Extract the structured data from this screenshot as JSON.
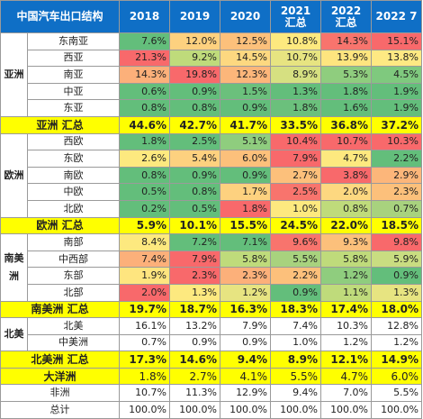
{
  "header": {
    "title": "中国汽车出口结构",
    "columns": [
      "2018",
      "2019",
      "2020",
      "2021 汇总",
      "2022 汇总",
      "2022 7"
    ]
  },
  "groups": {
    "asia": {
      "label": "亚洲",
      "rows": [
        {
          "region": "东南亚",
          "values": [
            "7.6%",
            "12.0%",
            "12.5%",
            "10.8%",
            "14.3%",
            "15.1%"
          ],
          "colors": [
            "#63be7b",
            "#fdd17f",
            "#fcc07b",
            "#fde97f",
            "#f8746d",
            "#f8696b"
          ]
        },
        {
          "region": "西亚",
          "values": [
            "21.3%",
            "9.2%",
            "14.5%",
            "10.7%",
            "13.9%",
            "13.8%"
          ],
          "colors": [
            "#f8696b",
            "#bfdb7b",
            "#fdd880",
            "#e7e481",
            "#fee57f",
            "#fee983"
          ]
        },
        {
          "region": "南亚",
          "values": [
            "14.3%",
            "19.8%",
            "12.3%",
            "8.9%",
            "5.3%",
            "4.5%"
          ],
          "colors": [
            "#fcb07a",
            "#f8696b",
            "#fcb67a",
            "#d6e081",
            "#8fcd7e",
            "#7fc97e"
          ]
        },
        {
          "region": "中亚",
          "values": [
            "0.6%",
            "0.9%",
            "1.5%",
            "1.3%",
            "1.8%",
            "1.9%"
          ],
          "colors": [
            "#63be7b",
            "#63be7b",
            "#6bc07c",
            "#63be7b",
            "#63be7b",
            "#63be7b"
          ]
        },
        {
          "region": "东亚",
          "values": [
            "0.8%",
            "0.8%",
            "0.9%",
            "1.8%",
            "1.6%",
            "1.9%"
          ],
          "colors": [
            "#63be7b",
            "#63be7b",
            "#63be7b",
            "#6bc07c",
            "#63be7b",
            "#63be7b"
          ]
        }
      ],
      "summary": {
        "label": "亚洲 汇总",
        "values": [
          "44.6%",
          "42.7%",
          "41.7%",
          "33.5%",
          "36.8%",
          "37.2%"
        ]
      }
    },
    "europe": {
      "label": "欧洲",
      "rows": [
        {
          "region": "西欧",
          "values": [
            "1.8%",
            "2.5%",
            "5.1%",
            "10.4%",
            "10.7%",
            "10.3%"
          ],
          "colors": [
            "#63be7b",
            "#63be7b",
            "#8fcd7e",
            "#f8696b",
            "#f8696b",
            "#f8696b"
          ]
        },
        {
          "region": "东欧",
          "values": [
            "2.6%",
            "5.4%",
            "6.0%",
            "7.9%",
            "4.7%",
            "2.2%"
          ],
          "colors": [
            "#fde97f",
            "#fdd17f",
            "#fcc07b",
            "#f8696b",
            "#fde97f",
            "#63be7b"
          ]
        },
        {
          "region": "南欧",
          "values": [
            "0.8%",
            "0.9%",
            "0.9%",
            "2.7%",
            "3.8%",
            "2.9%"
          ],
          "colors": [
            "#63be7b",
            "#63be7b",
            "#63be7b",
            "#fcc07b",
            "#f8696b",
            "#fcb67a"
          ]
        },
        {
          "region": "中欧",
          "values": [
            "0.5%",
            "0.8%",
            "1.7%",
            "2.5%",
            "2.0%",
            "2.3%"
          ],
          "colors": [
            "#63be7b",
            "#63be7b",
            "#fdd17f",
            "#f8746d",
            "#fdd880",
            "#fcc07b"
          ]
        },
        {
          "region": "北欧",
          "values": [
            "0.2%",
            "0.5%",
            "1.8%",
            "1.0%",
            "0.8%",
            "0.7%"
          ],
          "colors": [
            "#63be7b",
            "#63be7b",
            "#f8696b",
            "#fde97f",
            "#bfdb7b",
            "#a8d27e"
          ]
        }
      ],
      "summary": {
        "label": "欧洲 汇总",
        "values": [
          "5.9%",
          "10.1%",
          "15.5%",
          "24.5%",
          "22.0%",
          "18.5%"
        ]
      }
    },
    "south_america": {
      "label": "南美洲",
      "rows": [
        {
          "region": "南部",
          "values": [
            "8.4%",
            "7.2%",
            "7.1%",
            "9.6%",
            "9.3%",
            "9.8%"
          ],
          "colors": [
            "#fde97f",
            "#63be7b",
            "#63be7b",
            "#f8746d",
            "#fcc07b",
            "#f8696b"
          ]
        },
        {
          "region": "中西部",
          "values": [
            "7.4%",
            "7.9%",
            "5.8%",
            "5.5%",
            "5.8%",
            "5.9%"
          ],
          "colors": [
            "#fcb07a",
            "#f8696b",
            "#bfdb7b",
            "#a8d27e",
            "#bfdb7b",
            "#c9dd81"
          ]
        },
        {
          "region": "东部",
          "values": [
            "1.9%",
            "2.3%",
            "2.3%",
            "2.2%",
            "1.2%",
            "0.9%"
          ],
          "colors": [
            "#fee57f",
            "#f8696b",
            "#fcb07a",
            "#fcc07b",
            "#8fcd7e",
            "#63be7b"
          ]
        },
        {
          "region": "北部",
          "values": [
            "2.0%",
            "1.3%",
            "1.2%",
            "0.9%",
            "1.1%",
            "1.3%"
          ],
          "colors": [
            "#f8696b",
            "#fde97f",
            "#e7e481",
            "#63be7b",
            "#bfdb7b",
            "#e7e481"
          ]
        }
      ],
      "summary": {
        "label": "南美洲 汇总",
        "values": [
          "19.7%",
          "18.7%",
          "16.3%",
          "18.3%",
          "17.4%",
          "18.0%"
        ]
      }
    },
    "north_america": {
      "label": "北美",
      "rows": [
        {
          "region": "北美",
          "values": [
            "16.1%",
            "13.2%",
            "7.9%",
            "7.4%",
            "10.3%",
            "12.8%"
          ]
        },
        {
          "region": "中美洲",
          "values": [
            "0.7%",
            "0.9%",
            "0.9%",
            "1.0%",
            "1.2%",
            "1.2%"
          ]
        }
      ],
      "summary": {
        "label": "北美洲 汇总",
        "values": [
          "17.3%",
          "14.6%",
          "9.4%",
          "8.9%",
          "12.1%",
          "14.9%"
        ]
      }
    }
  },
  "oceania": {
    "label": "大洋洲",
    "values": [
      "1.8%",
      "2.7%",
      "4.1%",
      "5.5%",
      "4.7%",
      "6.0%"
    ]
  },
  "africa": {
    "label": "非洲",
    "values": [
      "10.7%",
      "11.3%",
      "12.9%",
      "9.4%",
      "7.0%",
      "5.5%"
    ]
  },
  "total": {
    "label": "总计",
    "values": [
      "100.0%",
      "100.0%",
      "100.0%",
      "100.0%",
      "100.0%",
      "100.0%"
    ]
  },
  "colors": {
    "header_bg": "#0f6fc6",
    "summary_bg": "#ffff00",
    "high": "#f8696b",
    "mid": "#ffeb84",
    "low": "#63be7b"
  }
}
